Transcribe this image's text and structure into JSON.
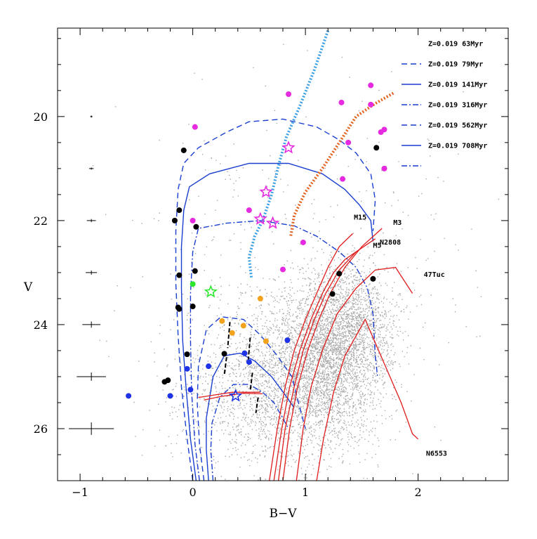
{
  "chart_data": {
    "type": "scatter",
    "title": "",
    "xlabel": "B−V",
    "ylabel": "V",
    "xlim": [
      -1.2,
      2.8
    ],
    "ylim": [
      27.0,
      18.3
    ],
    "y_inverted": true,
    "x_ticks": [
      -1,
      0,
      1,
      2
    ],
    "x_tick_labels": [
      "−1",
      "0",
      "1",
      "2"
    ],
    "y_ticks": [
      20,
      22,
      24,
      26
    ],
    "y_tick_labels": [
      "20",
      "22",
      "24",
      "26"
    ],
    "x_minor_step": 0.2,
    "y_minor_step": 0.5,
    "background_cloud": {
      "color": "#a9a9a9",
      "description_centers": [
        [
          1.05,
          25.0
        ],
        [
          1.3,
          24.2
        ],
        [
          0.5,
          25.2
        ]
      ],
      "n_points": 6000
    },
    "error_bars": [
      {
        "v": 20.0,
        "bv": -0.9,
        "sigma_bv": 0.01,
        "sigma_v": 0.02
      },
      {
        "v": 21.0,
        "bv": -0.9,
        "sigma_bv": 0.02,
        "sigma_v": 0.02
      },
      {
        "v": 22.0,
        "bv": -0.9,
        "sigma_bv": 0.04,
        "sigma_v": 0.03
      },
      {
        "v": 23.0,
        "bv": -0.9,
        "sigma_bv": 0.05,
        "sigma_v": 0.04
      },
      {
        "v": 24.0,
        "bv": -0.9,
        "sigma_bv": 0.08,
        "sigma_v": 0.06
      },
      {
        "v": 25.0,
        "bv": -0.9,
        "sigma_bv": 0.13,
        "sigma_v": 0.08
      },
      {
        "v": 26.0,
        "bv": -0.9,
        "sigma_bv": 0.2,
        "sigma_v": 0.12
      }
    ],
    "isochrone_legend": [
      {
        "label": "Z=0.019 63Myr",
        "dash": "8,5"
      },
      {
        "label": "Z=0.019 79Myr",
        "dash": ""
      },
      {
        "label": "Z=0.019 141Myr",
        "dash": "8,3,2,3"
      },
      {
        "label": "Z=0.019 316Myr",
        "dash": "8,5"
      },
      {
        "label": "Z=0.019 562Myr",
        "dash": ""
      },
      {
        "label": "Z=0.019 708Myr",
        "dash": "8,3,2,3"
      }
    ],
    "isochrone_color": "#1a3fd0",
    "isochrones": [
      {
        "name": "63Myr",
        "dash": "8,5",
        "points": [
          [
            0.0,
            27.0
          ],
          [
            -0.05,
            26.2
          ],
          [
            -0.1,
            25.2
          ],
          [
            -0.13,
            24.2
          ],
          [
            -0.15,
            23.2
          ],
          [
            -0.15,
            22.2
          ],
          [
            -0.13,
            21.4
          ],
          [
            -0.08,
            20.9
          ],
          [
            0.05,
            20.6
          ],
          [
            0.3,
            20.3
          ],
          [
            0.5,
            20.1
          ],
          [
            0.8,
            20.05
          ],
          [
            1.1,
            20.2
          ],
          [
            1.3,
            20.45
          ],
          [
            1.45,
            20.7
          ],
          [
            1.58,
            21.1
          ],
          [
            1.62,
            21.6
          ],
          [
            1.6,
            22.2
          ]
        ]
      },
      {
        "name": "79Myr",
        "dash": "",
        "points": [
          [
            0.03,
            27.0
          ],
          [
            -0.02,
            26.2
          ],
          [
            -0.06,
            25.2
          ],
          [
            -0.09,
            24.3
          ],
          [
            -0.1,
            23.3
          ],
          [
            -0.1,
            22.5
          ],
          [
            -0.08,
            21.8
          ],
          [
            -0.03,
            21.35
          ],
          [
            0.15,
            21.1
          ],
          [
            0.5,
            20.9
          ],
          [
            0.85,
            20.9
          ],
          [
            1.15,
            21.1
          ],
          [
            1.35,
            21.4
          ],
          [
            1.48,
            21.7
          ],
          [
            1.58,
            22.0
          ],
          [
            1.6,
            22.4
          ]
        ]
      },
      {
        "name": "141Myr",
        "dash": "8,3,2,3",
        "points": [
          [
            0.06,
            27.0
          ],
          [
            0.02,
            26.3
          ],
          [
            -0.01,
            25.3
          ],
          [
            -0.02,
            24.3
          ],
          [
            -0.02,
            23.4
          ],
          [
            0.0,
            22.6
          ],
          [
            0.05,
            22.15
          ],
          [
            0.3,
            22.05
          ],
          [
            0.6,
            22.0
          ],
          [
            0.9,
            22.1
          ],
          [
            1.1,
            22.3
          ],
          [
            1.3,
            22.6
          ],
          [
            1.45,
            22.9
          ],
          [
            1.55,
            23.3
          ],
          [
            1.6,
            23.8
          ],
          [
            1.62,
            24.6
          ],
          [
            1.64,
            25.0
          ]
        ]
      },
      {
        "name": "316Myr",
        "dash": "8,5",
        "points": [
          [
            0.1,
            27.0
          ],
          [
            0.06,
            26.3
          ],
          [
            0.04,
            25.5
          ],
          [
            0.05,
            24.8
          ],
          [
            0.12,
            24.1
          ],
          [
            0.25,
            23.85
          ],
          [
            0.45,
            23.9
          ],
          [
            0.6,
            24.2
          ],
          [
            0.75,
            24.6
          ],
          [
            0.88,
            25.0
          ],
          [
            0.95,
            25.6
          ],
          [
            1.0,
            26.0
          ]
        ]
      },
      {
        "name": "562Myr",
        "dash": "",
        "points": [
          [
            0.14,
            27.0
          ],
          [
            0.12,
            26.4
          ],
          [
            0.12,
            25.8
          ],
          [
            0.18,
            25.0
          ],
          [
            0.28,
            24.6
          ],
          [
            0.42,
            24.55
          ],
          [
            0.55,
            24.7
          ],
          [
            0.7,
            25.0
          ],
          [
            0.82,
            25.35
          ],
          [
            0.9,
            25.6
          ]
        ]
      },
      {
        "name": "708Myr",
        "dash": "8,3,2,3",
        "points": [
          [
            0.18,
            27.0
          ],
          [
            0.16,
            26.4
          ],
          [
            0.17,
            25.9
          ],
          [
            0.24,
            25.4
          ],
          [
            0.36,
            25.15
          ],
          [
            0.5,
            25.15
          ],
          [
            0.62,
            25.3
          ],
          [
            0.72,
            25.5
          ],
          [
            0.8,
            25.8
          ],
          [
            0.85,
            26.0
          ]
        ]
      }
    ],
    "gc_color": "#e01b1b",
    "globular_clusters": [
      {
        "name": "M15",
        "label": "M15",
        "points": [
          [
            0.68,
            27.0
          ],
          [
            0.75,
            26.0
          ],
          [
            0.82,
            25.2
          ],
          [
            0.9,
            24.5
          ],
          [
            1.0,
            23.9
          ],
          [
            1.1,
            23.4
          ],
          [
            1.2,
            22.9
          ],
          [
            1.3,
            22.5
          ],
          [
            1.42,
            22.25
          ]
        ]
      },
      {
        "name": "M3",
        "label": "M3",
        "points": [
          [
            0.8,
            27.0
          ],
          [
            0.86,
            26.0
          ],
          [
            0.93,
            25.2
          ],
          [
            1.02,
            24.5
          ],
          [
            1.12,
            23.9
          ],
          [
            1.22,
            23.4
          ],
          [
            1.35,
            22.9
          ],
          [
            1.5,
            22.5
          ],
          [
            1.68,
            22.15
          ]
        ]
      },
      {
        "name": "M5",
        "label": "M5",
        "points": [
          [
            0.72,
            27.0
          ],
          [
            0.79,
            26.0
          ],
          [
            0.86,
            25.2
          ],
          [
            0.95,
            24.5
          ],
          [
            1.05,
            23.9
          ],
          [
            1.15,
            23.4
          ],
          [
            1.25,
            23.0
          ],
          [
            1.35,
            22.75
          ],
          [
            1.45,
            22.6
          ]
        ]
      },
      {
        "name": "N2808",
        "label": "N2808",
        "points": [
          [
            0.76,
            27.0
          ],
          [
            0.82,
            26.0
          ],
          [
            0.9,
            25.2
          ],
          [
            0.98,
            24.5
          ],
          [
            1.08,
            23.9
          ],
          [
            1.18,
            23.4
          ],
          [
            1.3,
            22.95
          ],
          [
            1.45,
            22.6
          ],
          [
            1.62,
            22.35
          ]
        ]
      },
      {
        "name": "47Tuc",
        "label": "47Tuc",
        "points": [
          [
            0.92,
            27.0
          ],
          [
            0.98,
            26.0
          ],
          [
            1.05,
            25.2
          ],
          [
            1.15,
            24.5
          ],
          [
            1.28,
            23.8
          ],
          [
            1.45,
            23.3
          ],
          [
            1.62,
            22.95
          ],
          [
            1.8,
            22.9
          ],
          [
            1.95,
            23.4
          ]
        ]
      },
      {
        "name": "N6553",
        "label": "N6553",
        "points": [
          [
            1.1,
            27.0
          ],
          [
            1.16,
            26.2
          ],
          [
            1.25,
            25.3
          ],
          [
            1.35,
            24.6
          ],
          [
            1.48,
            24.1
          ],
          [
            1.53,
            23.9
          ],
          [
            1.65,
            24.5
          ],
          [
            1.75,
            25.0
          ],
          [
            1.85,
            25.5
          ],
          [
            1.95,
            26.1
          ],
          [
            2.0,
            26.2
          ]
        ]
      }
    ],
    "gc_labels": [
      {
        "text": "M15",
        "bv": 1.43,
        "v": 21.98
      },
      {
        "text": "M3",
        "bv": 1.78,
        "v": 22.08
      },
      {
        "text": "M5",
        "bv": 1.6,
        "v": 22.52
      },
      {
        "text": "N2808",
        "bv": 1.66,
        "v": 22.46
      },
      {
        "text": "47Tuc",
        "bv": 2.05,
        "v": 23.08
      },
      {
        "text": "N6553",
        "bv": 2.07,
        "v": 26.52
      }
    ],
    "horizontal_branches": [
      {
        "points": [
          [
            0.05,
            25.4
          ],
          [
            0.2,
            25.35
          ],
          [
            0.35,
            25.3
          ],
          [
            0.5,
            25.3
          ],
          [
            0.6,
            25.3
          ]
        ]
      },
      {
        "points": [
          [
            0.1,
            25.45
          ],
          [
            0.25,
            25.38
          ],
          [
            0.45,
            25.32
          ],
          [
            0.62,
            25.33
          ]
        ]
      }
    ],
    "dotted_lines": [
      {
        "color": "#39a0e6",
        "name": "blue-dotted",
        "points": [
          [
            1.2,
            18.35
          ],
          [
            1.08,
            19.1
          ],
          [
            0.95,
            19.8
          ],
          [
            0.83,
            20.4
          ],
          [
            0.76,
            20.95
          ],
          [
            0.7,
            21.5
          ],
          [
            0.62,
            22.0
          ],
          [
            0.55,
            22.3
          ],
          [
            0.5,
            22.7
          ],
          [
            0.52,
            23.1
          ]
        ]
      },
      {
        "color": "#e3621e",
        "name": "orange-dotted",
        "points": [
          [
            1.78,
            19.55
          ],
          [
            1.62,
            19.75
          ],
          [
            1.45,
            20.0
          ],
          [
            1.3,
            20.5
          ],
          [
            1.15,
            21.0
          ],
          [
            1.0,
            21.45
          ],
          [
            0.9,
            21.9
          ],
          [
            0.87,
            22.3
          ]
        ]
      }
    ],
    "points": {
      "magenta": {
        "color": "#e52ae0",
        "xy": [
          [
            1.58,
            19.4
          ],
          [
            0.85,
            19.57
          ],
          [
            1.32,
            19.73
          ],
          [
            1.58,
            19.77
          ],
          [
            0.02,
            20.2
          ],
          [
            1.7,
            20.25
          ],
          [
            1.67,
            20.3
          ],
          [
            1.38,
            20.5
          ],
          [
            1.7,
            21.0
          ],
          [
            1.33,
            21.2
          ],
          [
            0.5,
            21.8
          ],
          [
            0.0,
            22.0
          ],
          [
            0.98,
            22.42
          ],
          [
            0.8,
            22.94
          ]
        ]
      },
      "black": {
        "color": "#000000",
        "xy": [
          [
            -0.08,
            20.65
          ],
          [
            1.63,
            20.6
          ],
          [
            -0.12,
            21.8
          ],
          [
            -0.16,
            22.0
          ],
          [
            0.03,
            22.12
          ],
          [
            0.02,
            22.97
          ],
          [
            -0.12,
            23.05
          ],
          [
            1.3,
            23.02
          ],
          [
            1.6,
            23.12
          ],
          [
            0.0,
            23.65
          ],
          [
            -0.13,
            23.67
          ],
          [
            -0.12,
            23.7
          ],
          [
            1.24,
            23.41
          ],
          [
            0.28,
            24.56
          ],
          [
            -0.05,
            24.57
          ],
          [
            -0.22,
            25.07
          ],
          [
            -0.25,
            25.1
          ]
        ]
      },
      "blue": {
        "color": "#1e32e6",
        "xy": [
          [
            0.84,
            24.3
          ],
          [
            0.46,
            24.55
          ],
          [
            0.5,
            24.72
          ],
          [
            0.14,
            24.8
          ],
          [
            -0.05,
            24.85
          ],
          [
            -0.02,
            25.25
          ],
          [
            -0.2,
            25.37
          ],
          [
            -0.57,
            25.37
          ]
        ]
      },
      "orange": {
        "color": "#f2a21c",
        "xy": [
          [
            0.6,
            23.5
          ],
          [
            0.26,
            23.93
          ],
          [
            0.45,
            24.02
          ],
          [
            0.35,
            24.16
          ],
          [
            0.65,
            24.32
          ]
        ]
      },
      "green": {
        "color": "#2ee62e",
        "xy": [
          [
            0.0,
            23.22
          ]
        ]
      }
    },
    "stars": [
      {
        "color": "#e52ae0",
        "bv": 0.85,
        "v": 20.6
      },
      {
        "color": "#e52ae0",
        "bv": 0.65,
        "v": 21.45
      },
      {
        "color": "#e52ae0",
        "bv": 0.6,
        "v": 21.97
      },
      {
        "color": "#e52ae0",
        "bv": 0.71,
        "v": 22.05
      },
      {
        "color": "#2ee62e",
        "bv": 0.16,
        "v": 23.37
      },
      {
        "color": "#1e32e6",
        "bv": 0.38,
        "v": 25.37
      }
    ],
    "black_ticks": [
      {
        "bv": 0.33,
        "v": 24.2,
        "len": 0.5
      },
      {
        "bv": 0.51,
        "v": 24.5,
        "len": 0.5
      },
      {
        "bv": 0.3,
        "v": 24.8,
        "len": 0.35
      },
      {
        "bv": 0.53,
        "v": 25.1,
        "len": 0.35
      },
      {
        "bv": 0.58,
        "v": 25.55,
        "len": 0.3
      }
    ]
  }
}
